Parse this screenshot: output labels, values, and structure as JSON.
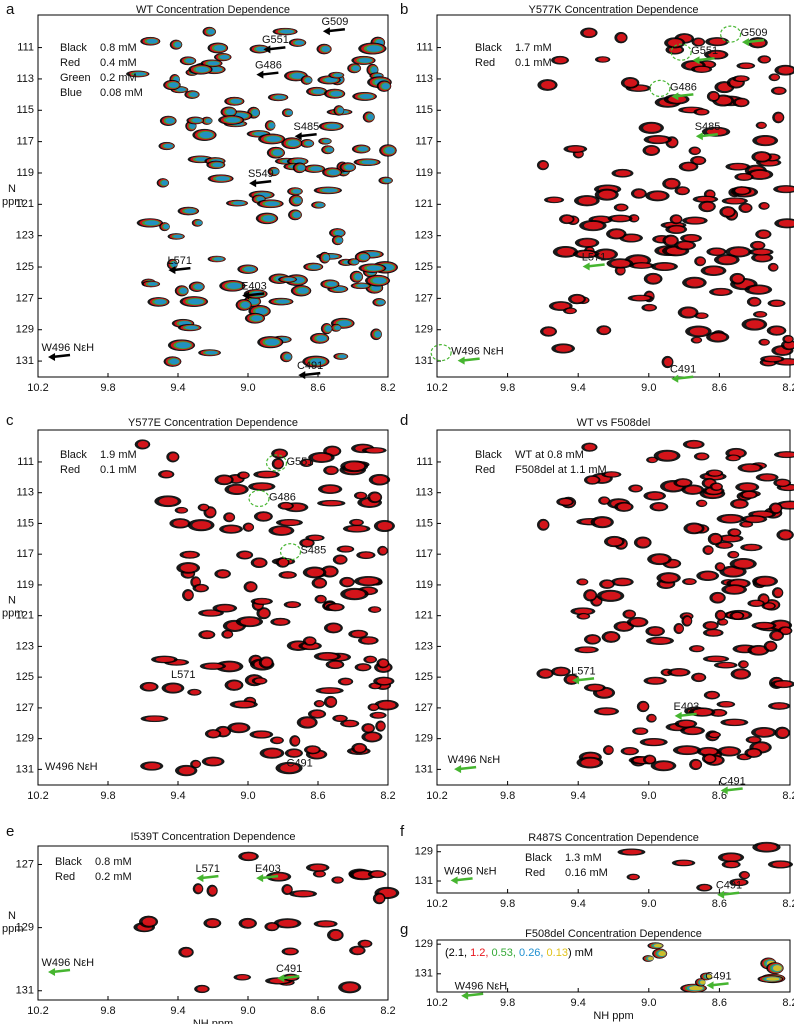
{
  "panels": [
    {
      "letter": "a",
      "title": "WT Concentration Dependence",
      "legend": [
        {
          "label": "Black",
          "value": "0.8 mM",
          "color": "#000000"
        },
        {
          "label": "Red",
          "value": "0.4 mM",
          "color": "#e8141b"
        },
        {
          "label": "Green",
          "value": "0.2 mM",
          "color": "#35a936"
        },
        {
          "label": "Blue",
          "value": "0.08 mM",
          "color": "#1e8fd0"
        }
      ],
      "annotations": [
        "G551",
        "G486",
        "G509",
        "S485",
        "S549",
        "L571",
        "E403",
        "W496 NεH",
        "C491"
      ],
      "x_ticks": [
        "10.2",
        "9.8",
        "9.4",
        "9.0",
        "8.6",
        "8.2"
      ],
      "y_ticks": [
        "111",
        "113",
        "115",
        "117",
        "119",
        "121",
        "123",
        "125",
        "127",
        "129",
        "131"
      ],
      "y_label": "N",
      "y_unit": "ppm"
    },
    {
      "letter": "b",
      "title": "Y577K Concentration Dependence",
      "legend": [
        {
          "label": "Black",
          "value": "1.7 mM",
          "color": "#000000"
        },
        {
          "label": "Red",
          "value": "0.1 mM",
          "color": "#e8141b"
        }
      ],
      "annotations": [
        "G509",
        "G551",
        "G486",
        "S485",
        "L571",
        "W496 NεH",
        "C491"
      ],
      "x_ticks": [
        "10.2",
        "9.8",
        "9.4",
        "9.0",
        "8.6",
        "8.2"
      ],
      "y_ticks": [
        "111",
        "113",
        "115",
        "117",
        "119",
        "121",
        "123",
        "125",
        "127",
        "129",
        "131"
      ]
    },
    {
      "letter": "c",
      "title": "Y577E Concentration Dependence",
      "legend": [
        {
          "label": "Black",
          "value": "1.9 mM",
          "color": "#000000"
        },
        {
          "label": "Red",
          "value": "0.1 mM",
          "color": "#e8141b"
        }
      ],
      "annotations": [
        "G551",
        "G486",
        "S485",
        "L571",
        "W496 NεH",
        "C491"
      ],
      "x_ticks": [
        "10.2",
        "9.8",
        "9.4",
        "9.0",
        "8.6",
        "8.2"
      ],
      "y_ticks": [
        "111",
        "113",
        "115",
        "117",
        "119",
        "121",
        "123",
        "125",
        "127",
        "129",
        "131"
      ],
      "y_label": "N",
      "y_unit": "ppm"
    },
    {
      "letter": "d",
      "title": "WT vs F508del",
      "legend": [
        {
          "label": "Black",
          "value": "WT at 0.8 mM",
          "color": "#000000"
        },
        {
          "label": "Red",
          "value": "F508del at 1.1 mM",
          "color": "#e8141b"
        }
      ],
      "annotations": [
        "L571",
        "E403",
        "W496 NεH",
        "C491"
      ],
      "x_ticks": [
        "10.2",
        "9.8",
        "9.4",
        "9.0",
        "8.6",
        "8.2"
      ],
      "y_ticks": [
        "111",
        "113",
        "115",
        "117",
        "119",
        "121",
        "123",
        "125",
        "127",
        "129",
        "131"
      ]
    },
    {
      "letter": "e",
      "title": "I539T Concentration Dependence",
      "legend": [
        {
          "label": "Black",
          "value": "0.8 mM",
          "color": "#000000"
        },
        {
          "label": "Red",
          "value": "0.2 mM",
          "color": "#e8141b"
        }
      ],
      "annotations": [
        "L571",
        "E403",
        "W496 NεH",
        "C491"
      ],
      "x_ticks": [
        "10.2",
        "9.8",
        "9.4",
        "9.0",
        "8.6",
        "8.2"
      ],
      "y_ticks": [
        "127",
        "129",
        "131"
      ],
      "y_label": "N",
      "y_unit": "ppm",
      "x_label": "NH ppm"
    },
    {
      "letter": "f",
      "title": "R487S Concentration Dependence",
      "legend": [
        {
          "label": "Black",
          "value": "1.3 mM",
          "color": "#000000"
        },
        {
          "label": "Red",
          "value": "0.16 mM",
          "color": "#e8141b"
        }
      ],
      "annotations": [
        "W496 NεH",
        "C491"
      ],
      "x_ticks": [
        "10.2",
        "9.8",
        "9.4",
        "9.0",
        "8.6",
        "8.2"
      ],
      "y_ticks": [
        "129",
        "131"
      ]
    },
    {
      "letter": "g",
      "title": "F508del Concentration Dependence",
      "legend_parts": [
        {
          "text": "(2.1, ",
          "color": "#000000"
        },
        {
          "text": "1.2, ",
          "color": "#e8141b"
        },
        {
          "text": "0.53, ",
          "color": "#35a936"
        },
        {
          "text": "0.26, ",
          "color": "#1e8fd0"
        },
        {
          "text": "0.13",
          "color": "#e0c21a"
        },
        {
          "text": ") mM",
          "color": "#000000"
        }
      ],
      "annotations": [
        "W496 NεH",
        "C491"
      ],
      "x_ticks": [
        "10.2",
        "9.8",
        "9.4",
        "9.0",
        "8.6",
        "8.2"
      ],
      "y_ticks": [
        "129",
        "131"
      ],
      "x_label": "NH ppm"
    }
  ]
}
